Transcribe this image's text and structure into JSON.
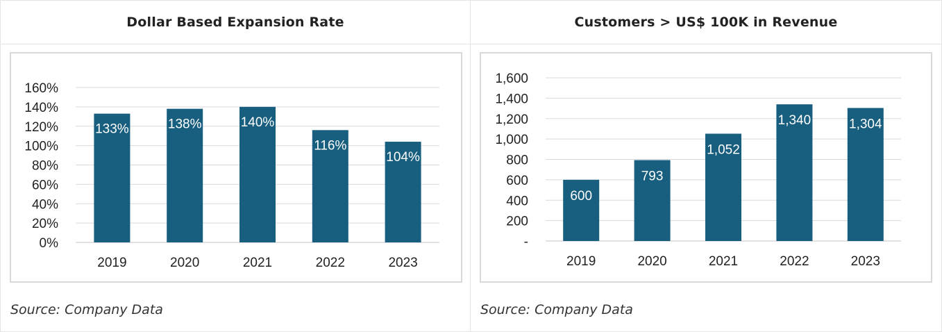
{
  "charts": [
    {
      "header": "Dollar Based Expansion Rate",
      "source": "Source: Company Data"
    },
    {
      "header": "Customers > US$ 100K in Revenue",
      "source": "Source: Company Data"
    }
  ],
  "colors": {
    "bar": "#175e7f",
    "grid": "#d9d9d9",
    "label_on_bar": "#ffffff"
  },
  "chart_data": [
    {
      "type": "bar",
      "title": "Dollar Based Expansion Rate",
      "categories": [
        "2019",
        "2020",
        "2021",
        "2022",
        "2023"
      ],
      "values": [
        133,
        138,
        140,
        116,
        104
      ],
      "value_labels": [
        "133%",
        "138%",
        "140%",
        "116%",
        "104%"
      ],
      "yticks": [
        "0%",
        "20%",
        "40%",
        "60%",
        "80%",
        "100%",
        "120%",
        "140%",
        "160%"
      ],
      "ylim": [
        0,
        160
      ],
      "grid": true
    },
    {
      "type": "bar",
      "title": "Customers > US$ 100K in Revenue",
      "categories": [
        "2019",
        "2020",
        "2021",
        "2022",
        "2023"
      ],
      "values": [
        600,
        793,
        1052,
        1340,
        1304
      ],
      "value_labels": [
        "600",
        "793",
        "1,052",
        "1,340",
        "1,304"
      ],
      "yticks": [
        "-",
        "200",
        "400",
        "600",
        "800",
        "1,000",
        "1,200",
        "1,400",
        "1,600"
      ],
      "ylim": [
        0,
        1600
      ],
      "grid": true
    }
  ]
}
